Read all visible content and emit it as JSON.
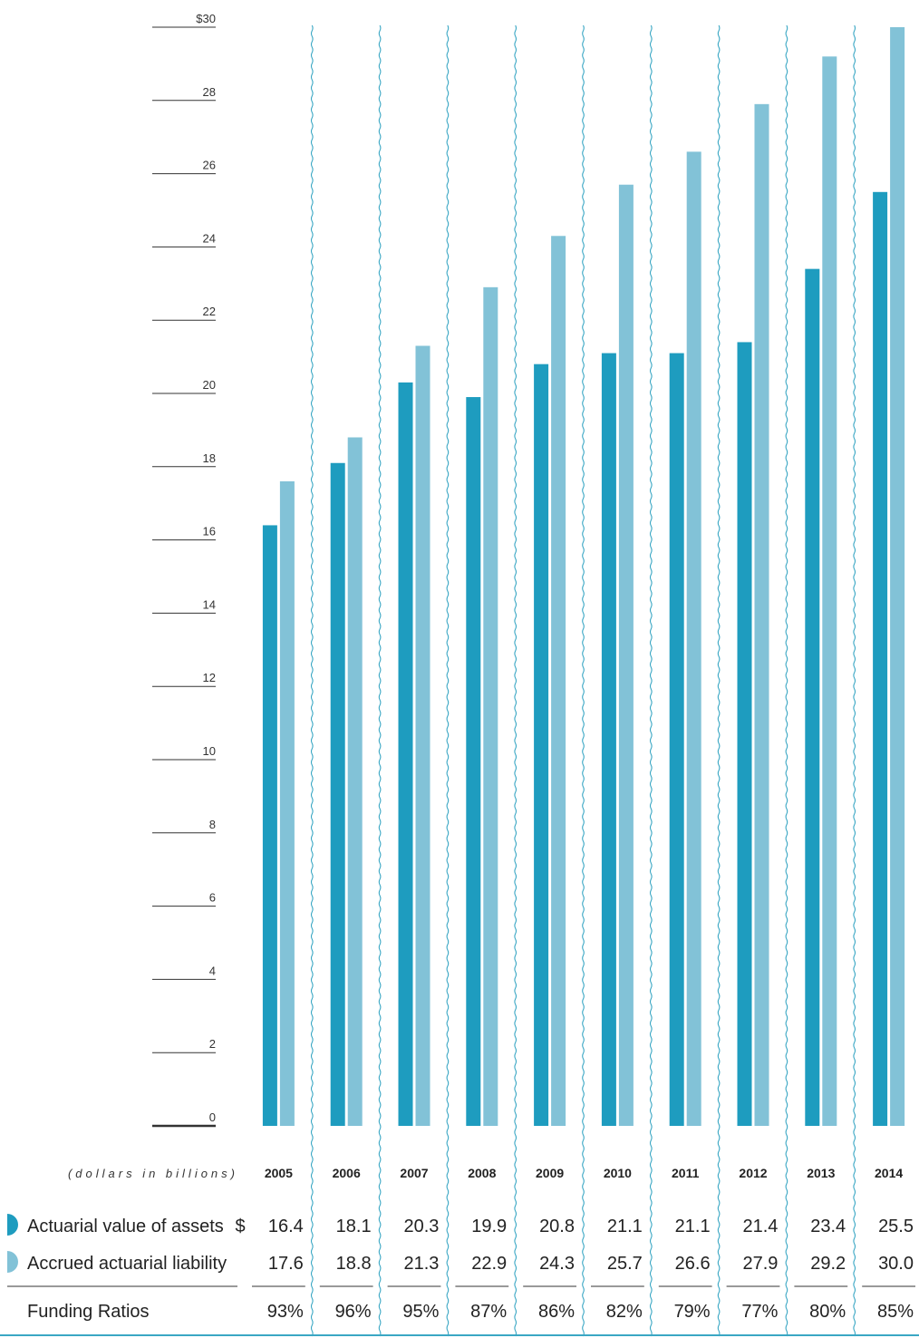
{
  "chart_data": {
    "type": "bar",
    "categories": [
      "2005",
      "2006",
      "2007",
      "2008",
      "2009",
      "2010",
      "2011",
      "2012",
      "2013",
      "2014"
    ],
    "series": [
      {
        "name": "Actuarial value of assets",
        "color": "#1e9cbf",
        "values": [
          16.4,
          18.1,
          20.3,
          19.9,
          20.8,
          21.1,
          21.1,
          21.4,
          23.4,
          25.5
        ]
      },
      {
        "name": "Accrued actuarial liability",
        "color": "#82c2d7",
        "values": [
          17.6,
          18.8,
          21.3,
          22.9,
          24.3,
          25.7,
          26.6,
          27.9,
          29.2,
          30.0
        ]
      }
    ],
    "ylim": [
      0,
      30
    ],
    "yticks": [
      "0",
      "2",
      "4",
      "6",
      "8",
      "10",
      "12",
      "14",
      "16",
      "18",
      "20",
      "22",
      "24",
      "26",
      "28",
      "$30"
    ],
    "grid": false,
    "units_label": "(dollars in billions)",
    "table": {
      "currency_symbol": "$",
      "assets_values": [
        "16.4",
        "18.1",
        "20.3",
        "19.9",
        "20.8",
        "21.1",
        "21.1",
        "21.4",
        "23.4",
        "25.5"
      ],
      "liability_values": [
        "17.6",
        "18.8",
        "21.3",
        "22.9",
        "24.3",
        "25.7",
        "26.6",
        "27.9",
        "29.2",
        "30.0"
      ],
      "funding_label": "Funding Ratios",
      "funding_ratios": [
        "93%",
        "96%",
        "95%",
        "87%",
        "86%",
        "82%",
        "79%",
        "77%",
        "80%",
        "85%"
      ]
    },
    "separator_color": "#3aa7c4"
  }
}
